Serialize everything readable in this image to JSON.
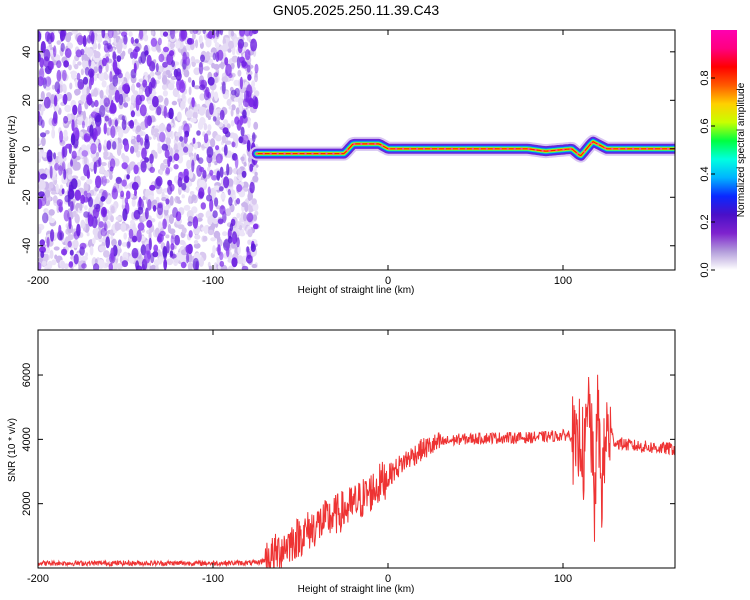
{
  "figure": {
    "title": "GN05.2025.250.11.39.C43"
  },
  "chart_data": [
    {
      "type": "heatmap",
      "title": "GN05.2025.250.11.39.C43",
      "xlabel": "Height of straight line (km)",
      "ylabel": "Frequency (Hz)",
      "xlim": [
        -200,
        164
      ],
      "ylim": [
        -50,
        49
      ],
      "xticks": [
        -200,
        -100,
        0,
        100
      ],
      "xtick_labels": [
        "-200",
        "-100",
        "0",
        "100"
      ],
      "yticks": [
        -40,
        -20,
        0,
        20,
        40
      ],
      "ytick_labels": [
        "-40",
        "-20",
        "0",
        "20",
        "40"
      ],
      "noise_region_x": [
        -200,
        -75
      ],
      "signal": {
        "x_start": -75,
        "x_end": 164,
        "frequency_track": [
          {
            "x": -75,
            "y": -2
          },
          {
            "x": -25,
            "y": -2
          },
          {
            "x": -20,
            "y": 2
          },
          {
            "x": -5,
            "y": 2
          },
          {
            "x": 0,
            "y": 0
          },
          {
            "x": 80,
            "y": 0
          },
          {
            "x": 90,
            "y": -1
          },
          {
            "x": 105,
            "y": 0
          },
          {
            "x": 110,
            "y": -3
          },
          {
            "x": 117,
            "y": 3
          },
          {
            "x": 125,
            "y": 0
          },
          {
            "x": 164,
            "y": 0
          }
        ]
      },
      "colorbar": {
        "label": "Normalized spectral amplitude",
        "range": [
          0,
          1
        ],
        "ticks": [
          0.0,
          0.2,
          0.4,
          0.6,
          0.8
        ],
        "tick_labels": [
          "0.0",
          "0.2",
          "0.4",
          "0.6",
          "0.8"
        ],
        "colormap": [
          "#ffffff",
          "#b39ddb",
          "#7e22ce",
          "#4a10c8",
          "#0a28ff",
          "#00b4ff",
          "#00ffe0",
          "#00ff40",
          "#c8ff00",
          "#ffd000",
          "#ff5a00",
          "#ff0000",
          "#ff0080",
          "#ff00b0"
        ]
      }
    },
    {
      "type": "line",
      "xlabel": "Height of straight line (km)",
      "ylabel": "SNR (10 * v/v)",
      "xlim": [
        -200,
        164
      ],
      "ylim": [
        0,
        7400
      ],
      "xticks": [
        -200,
        -100,
        0,
        100
      ],
      "xtick_labels": [
        "-200",
        "-100",
        "0",
        "100"
      ],
      "yticks": [
        2000,
        4000,
        6000
      ],
      "ytick_labels": [
        "2000",
        "4000",
        "6000"
      ],
      "series": [
        {
          "color": "#ee3333",
          "x": [
            -200,
            -150,
            -100,
            -75,
            -70,
            -65,
            -60,
            -50,
            -40,
            -30,
            -20,
            -10,
            0,
            10,
            20,
            30,
            40,
            60,
            80,
            95,
            105,
            108,
            110,
            112,
            115,
            118,
            120,
            122,
            125,
            130,
            140,
            150,
            164
          ],
          "y": [
            150,
            150,
            150,
            160,
            250,
            400,
            650,
            1000,
            1350,
            1650,
            1950,
            2350,
            2850,
            3350,
            3700,
            3900,
            4000,
            4050,
            4050,
            4100,
            4150,
            3300,
            4400,
            3200,
            5300,
            2000,
            5000,
            2400,
            4300,
            3900,
            3800,
            3750,
            3700
          ]
        }
      ]
    }
  ]
}
